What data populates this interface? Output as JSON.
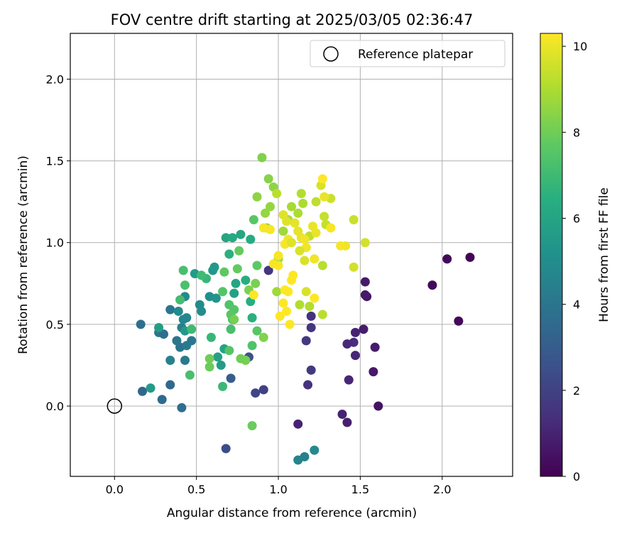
{
  "chart_data": {
    "type": "scatter",
    "title": "FOV centre drift starting at 2025/03/05 02:36:47",
    "xlabel": "Angular distance from reference (arcmin)",
    "ylabel": "Rotation from reference (arcmin)",
    "xlim": [
      -0.27,
      2.43
    ],
    "ylim": [
      -0.43,
      2.28
    ],
    "xticks": [
      "0.0",
      "0.5",
      "1.0",
      "1.5",
      "2.0"
    ],
    "yticks": [
      "0.0",
      "0.5",
      "1.0",
      "1.5",
      "2.0"
    ],
    "grid": true,
    "legend": {
      "position": "top-right",
      "entries": [
        "Reference platepar"
      ]
    },
    "reference_point": {
      "x": 0.0,
      "y": 0.0
    },
    "colorbar": {
      "label": "Hours from first FF file",
      "range": [
        0,
        10.3
      ],
      "ticks": [
        "0",
        "2",
        "4",
        "6",
        "8",
        "10"
      ],
      "colormap": "viridis"
    },
    "points": [
      {
        "x": 2.17,
        "y": 0.91,
        "h": 0.1
      },
      {
        "x": 2.03,
        "y": 0.9,
        "h": 0.2
      },
      {
        "x": 1.94,
        "y": 0.74,
        "h": 0.2
      },
      {
        "x": 2.1,
        "y": 0.52,
        "h": 0.2
      },
      {
        "x": 1.61,
        "y": 0.0,
        "h": 0.5
      },
      {
        "x": 1.54,
        "y": 0.67,
        "h": 0.6
      },
      {
        "x": 1.53,
        "y": 0.68,
        "h": 0.7
      },
      {
        "x": 1.53,
        "y": 0.76,
        "h": 0.7
      },
      {
        "x": 1.52,
        "y": 0.47,
        "h": 0.8
      },
      {
        "x": 1.59,
        "y": 0.36,
        "h": 0.8
      },
      {
        "x": 1.58,
        "y": 0.21,
        "h": 0.7
      },
      {
        "x": 1.47,
        "y": 0.45,
        "h": 1.0
      },
      {
        "x": 1.46,
        "y": 0.39,
        "h": 1.3
      },
      {
        "x": 1.47,
        "y": 0.31,
        "h": 1.1
      },
      {
        "x": 1.42,
        "y": 0.38,
        "h": 1.2
      },
      {
        "x": 1.43,
        "y": 0.16,
        "h": 1.1
      },
      {
        "x": 1.39,
        "y": -0.05,
        "h": 1.0
      },
      {
        "x": 1.42,
        "y": -0.1,
        "h": 0.9
      },
      {
        "x": 1.12,
        "y": -0.11,
        "h": 1.0
      },
      {
        "x": 1.2,
        "y": 0.55,
        "h": 1.5
      },
      {
        "x": 1.2,
        "y": 0.48,
        "h": 1.6
      },
      {
        "x": 1.17,
        "y": 0.4,
        "h": 1.7
      },
      {
        "x": 1.2,
        "y": 0.22,
        "h": 1.7
      },
      {
        "x": 1.18,
        "y": 0.13,
        "h": 1.5
      },
      {
        "x": 0.94,
        "y": 0.83,
        "h": 1.6
      },
      {
        "x": 0.91,
        "y": 0.1,
        "h": 2.0
      },
      {
        "x": 0.86,
        "y": 0.08,
        "h": 2.2
      },
      {
        "x": 0.82,
        "y": 0.3,
        "h": 2.6
      },
      {
        "x": 0.71,
        "y": 0.17,
        "h": 3.0
      },
      {
        "x": 0.68,
        "y": -0.26,
        "h": 2.4
      },
      {
        "x": 0.17,
        "y": 0.09,
        "h": 3.4
      },
      {
        "x": 0.34,
        "y": 0.13,
        "h": 3.5
      },
      {
        "x": 0.29,
        "y": 0.04,
        "h": 3.6
      },
      {
        "x": 0.41,
        "y": -0.01,
        "h": 3.7
      },
      {
        "x": 0.16,
        "y": 0.5,
        "h": 3.8
      },
      {
        "x": 0.27,
        "y": 0.45,
        "h": 4.0
      },
      {
        "x": 0.3,
        "y": 0.44,
        "h": 3.8
      },
      {
        "x": 0.38,
        "y": 0.4,
        "h": 4.0
      },
      {
        "x": 0.4,
        "y": 0.36,
        "h": 3.9
      },
      {
        "x": 0.44,
        "y": 0.37,
        "h": 4.2
      },
      {
        "x": 0.47,
        "y": 0.4,
        "h": 4.1
      },
      {
        "x": 0.43,
        "y": 0.28,
        "h": 4.2
      },
      {
        "x": 0.34,
        "y": 0.28,
        "h": 4.5
      },
      {
        "x": 0.34,
        "y": 0.59,
        "h": 4.0
      },
      {
        "x": 0.41,
        "y": 0.48,
        "h": 4.4
      },
      {
        "x": 0.42,
        "y": 0.53,
        "h": 4.6
      },
      {
        "x": 0.44,
        "y": 0.54,
        "h": 4.7
      },
      {
        "x": 0.39,
        "y": 0.58,
        "h": 4.8
      },
      {
        "x": 0.43,
        "y": 0.67,
        "h": 4.8
      },
      {
        "x": 0.52,
        "y": 0.62,
        "h": 4.9
      },
      {
        "x": 0.53,
        "y": 0.58,
        "h": 5.0
      },
      {
        "x": 0.58,
        "y": 0.67,
        "h": 5.1
      },
      {
        "x": 0.62,
        "y": 0.66,
        "h": 5.3
      },
      {
        "x": 0.6,
        "y": 0.83,
        "h": 5.4
      },
      {
        "x": 0.61,
        "y": 0.85,
        "h": 5.5
      },
      {
        "x": 0.22,
        "y": 0.11,
        "h": 5.6
      },
      {
        "x": 0.27,
        "y": 0.48,
        "h": 5.7
      },
      {
        "x": 0.43,
        "y": 0.46,
        "h": 5.5
      },
      {
        "x": 0.49,
        "y": 0.81,
        "h": 5.6
      },
      {
        "x": 0.63,
        "y": 0.3,
        "h": 5.8
      },
      {
        "x": 0.65,
        "y": 0.25,
        "h": 5.6
      },
      {
        "x": 0.67,
        "y": 0.35,
        "h": 5.9
      },
      {
        "x": 0.73,
        "y": 0.69,
        "h": 5.8
      },
      {
        "x": 0.74,
        "y": 0.75,
        "h": 6.0
      },
      {
        "x": 0.68,
        "y": 1.03,
        "h": 6.0
      },
      {
        "x": 0.72,
        "y": 1.03,
        "h": 6.2
      },
      {
        "x": 0.77,
        "y": 1.05,
        "h": 6.1
      },
      {
        "x": 0.83,
        "y": 1.02,
        "h": 6.3
      },
      {
        "x": 0.8,
        "y": 0.77,
        "h": 6.4
      },
      {
        "x": 0.83,
        "y": 0.64,
        "h": 6.4
      },
      {
        "x": 0.84,
        "y": 0.54,
        "h": 6.5
      },
      {
        "x": 0.7,
        "y": 0.93,
        "h": 6.5
      },
      {
        "x": 1.16,
        "y": -0.31,
        "h": 4.5
      },
      {
        "x": 1.12,
        "y": -0.33,
        "h": 4.6
      },
      {
        "x": 1.22,
        "y": -0.27,
        "h": 4.8
      },
      {
        "x": 0.56,
        "y": 0.78,
        "h": 6.8
      },
      {
        "x": 0.59,
        "y": 0.42,
        "h": 6.8
      },
      {
        "x": 0.66,
        "y": 0.12,
        "h": 6.9
      },
      {
        "x": 0.47,
        "y": 0.47,
        "h": 7.0
      },
      {
        "x": 0.53,
        "y": 0.8,
        "h": 7.0
      },
      {
        "x": 0.46,
        "y": 0.19,
        "h": 7.2
      },
      {
        "x": 0.4,
        "y": 0.65,
        "h": 7.1
      },
      {
        "x": 0.43,
        "y": 0.74,
        "h": 7.3
      },
      {
        "x": 0.42,
        "y": 0.83,
        "h": 7.2
      },
      {
        "x": 0.71,
        "y": 0.47,
        "h": 7.2
      },
      {
        "x": 0.72,
        "y": 0.53,
        "h": 7.3
      },
      {
        "x": 0.7,
        "y": 0.62,
        "h": 7.4
      },
      {
        "x": 0.73,
        "y": 0.59,
        "h": 7.5
      },
      {
        "x": 0.66,
        "y": 0.7,
        "h": 7.5
      },
      {
        "x": 0.71,
        "y": 0.56,
        "h": 7.6
      },
      {
        "x": 0.7,
        "y": 0.34,
        "h": 7.5
      },
      {
        "x": 0.84,
        "y": 0.37,
        "h": 7.4
      },
      {
        "x": 0.87,
        "y": 0.46,
        "h": 7.6
      },
      {
        "x": 0.87,
        "y": 0.86,
        "h": 7.7
      },
      {
        "x": 0.85,
        "y": 1.14,
        "h": 7.6
      },
      {
        "x": 0.76,
        "y": 0.95,
        "h": 7.8
      },
      {
        "x": 0.75,
        "y": 0.84,
        "h": 7.8
      },
      {
        "x": 0.67,
        "y": 0.82,
        "h": 7.7
      },
      {
        "x": 0.84,
        "y": -0.12,
        "h": 7.9
      },
      {
        "x": 0.58,
        "y": 0.24,
        "h": 7.9
      },
      {
        "x": 0.58,
        "y": 0.29,
        "h": 8.0
      },
      {
        "x": 0.77,
        "y": 0.29,
        "h": 8.0
      },
      {
        "x": 0.8,
        "y": 0.28,
        "h": 8.1
      },
      {
        "x": 0.73,
        "y": 0.53,
        "h": 8.1
      },
      {
        "x": 0.82,
        "y": 0.71,
        "h": 8.2
      },
      {
        "x": 0.86,
        "y": 0.75,
        "h": 8.2
      },
      {
        "x": 0.91,
        "y": 0.42,
        "h": 8.3
      },
      {
        "x": 0.9,
        "y": 1.52,
        "h": 8.3
      },
      {
        "x": 0.94,
        "y": 1.39,
        "h": 8.4
      },
      {
        "x": 0.97,
        "y": 1.34,
        "h": 8.5
      },
      {
        "x": 0.87,
        "y": 1.28,
        "h": 8.5
      },
      {
        "x": 0.92,
        "y": 1.18,
        "h": 8.6
      },
      {
        "x": 0.95,
        "y": 1.22,
        "h": 8.6
      },
      {
        "x": 0.93,
        "y": 1.09,
        "h": 8.7
      },
      {
        "x": 1.0,
        "y": 0.9,
        "h": 8.7
      },
      {
        "x": 0.99,
        "y": 0.7,
        "h": 8.8
      },
      {
        "x": 1.03,
        "y": 1.07,
        "h": 8.8
      },
      {
        "x": 1.06,
        "y": 1.14,
        "h": 8.9
      },
      {
        "x": 1.08,
        "y": 1.22,
        "h": 8.9
      },
      {
        "x": 1.12,
        "y": 1.18,
        "h": 9.0
      },
      {
        "x": 1.15,
        "y": 1.24,
        "h": 9.0
      },
      {
        "x": 1.14,
        "y": 1.3,
        "h": 9.1
      },
      {
        "x": 1.13,
        "y": 0.62,
        "h": 9.1
      },
      {
        "x": 1.19,
        "y": 0.61,
        "h": 9.1
      },
      {
        "x": 1.27,
        "y": 0.86,
        "h": 9.2
      },
      {
        "x": 1.27,
        "y": 0.56,
        "h": 9.2
      },
      {
        "x": 0.99,
        "y": 1.3,
        "h": 9.2
      },
      {
        "x": 1.19,
        "y": 1.04,
        "h": 9.3
      },
      {
        "x": 1.23,
        "y": 1.25,
        "h": 9.3
      },
      {
        "x": 1.28,
        "y": 1.16,
        "h": 9.4
      },
      {
        "x": 1.29,
        "y": 1.11,
        "h": 9.4
      },
      {
        "x": 1.32,
        "y": 1.27,
        "h": 9.5
      },
      {
        "x": 1.46,
        "y": 1.14,
        "h": 9.5
      },
      {
        "x": 1.53,
        "y": 1.0,
        "h": 9.6
      },
      {
        "x": 1.46,
        "y": 0.85,
        "h": 9.6
      },
      {
        "x": 1.17,
        "y": 0.7,
        "h": 9.7
      },
      {
        "x": 1.26,
        "y": 1.35,
        "h": 9.7
      },
      {
        "x": 1.16,
        "y": 0.89,
        "h": 9.7
      },
      {
        "x": 1.03,
        "y": 1.17,
        "h": 9.8
      },
      {
        "x": 1.05,
        "y": 1.13,
        "h": 9.8
      },
      {
        "x": 1.1,
        "y": 1.12,
        "h": 9.9
      },
      {
        "x": 1.12,
        "y": 1.07,
        "h": 9.9
      },
      {
        "x": 1.14,
        "y": 1.03,
        "h": 10.0
      },
      {
        "x": 1.21,
        "y": 1.1,
        "h": 10.0
      },
      {
        "x": 1.23,
        "y": 1.06,
        "h": 10.0
      },
      {
        "x": 1.16,
        "y": 1.02,
        "h": 10.1
      },
      {
        "x": 1.17,
        "y": 0.97,
        "h": 10.1
      },
      {
        "x": 1.06,
        "y": 1.02,
        "h": 10.1
      },
      {
        "x": 1.04,
        "y": 0.99,
        "h": 10.2
      },
      {
        "x": 1.0,
        "y": 0.92,
        "h": 10.2
      },
      {
        "x": 0.97,
        "y": 0.87,
        "h": 10.2
      },
      {
        "x": 1.0,
        "y": 0.86,
        "h": 10.2
      },
      {
        "x": 0.91,
        "y": 1.09,
        "h": 10.2
      },
      {
        "x": 0.95,
        "y": 1.08,
        "h": 10.2
      },
      {
        "x": 1.08,
        "y": 0.77,
        "h": 10.3
      },
      {
        "x": 1.09,
        "y": 0.8,
        "h": 10.3
      },
      {
        "x": 1.04,
        "y": 0.71,
        "h": 10.3
      },
      {
        "x": 1.06,
        "y": 0.7,
        "h": 10.3
      },
      {
        "x": 1.03,
        "y": 0.63,
        "h": 10.3
      },
      {
        "x": 1.05,
        "y": 0.58,
        "h": 10.3
      },
      {
        "x": 1.07,
        "y": 0.5,
        "h": 10.3
      },
      {
        "x": 1.01,
        "y": 0.55,
        "h": 10.3
      },
      {
        "x": 0.85,
        "y": 0.68,
        "h": 10.3
      },
      {
        "x": 1.22,
        "y": 0.66,
        "h": 10.3
      },
      {
        "x": 1.27,
        "y": 1.39,
        "h": 10.3
      },
      {
        "x": 1.38,
        "y": 0.98,
        "h": 10.2
      },
      {
        "x": 1.41,
        "y": 0.98,
        "h": 10.1
      },
      {
        "x": 1.32,
        "y": 1.09,
        "h": 10.2
      },
      {
        "x": 1.22,
        "y": 0.9,
        "h": 10.1
      },
      {
        "x": 1.28,
        "y": 1.28,
        "h": 10.0
      },
      {
        "x": 1.08,
        "y": 1.0,
        "h": 9.8
      },
      {
        "x": 1.13,
        "y": 0.95,
        "h": 9.7
      }
    ]
  }
}
